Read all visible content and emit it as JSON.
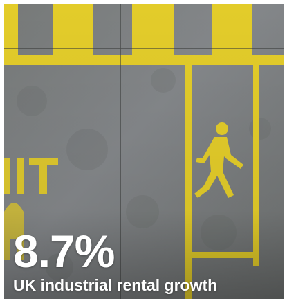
{
  "photo": {
    "subject": "pedestrian-walkway-marking",
    "icon": "pedestrian-icon",
    "paint_color": "#e3cc2a",
    "ground_color": "#7a7d7c"
  },
  "stat": {
    "value": "8.7%",
    "caption": "UK industrial rental growth",
    "text_color": "#ffffff"
  }
}
